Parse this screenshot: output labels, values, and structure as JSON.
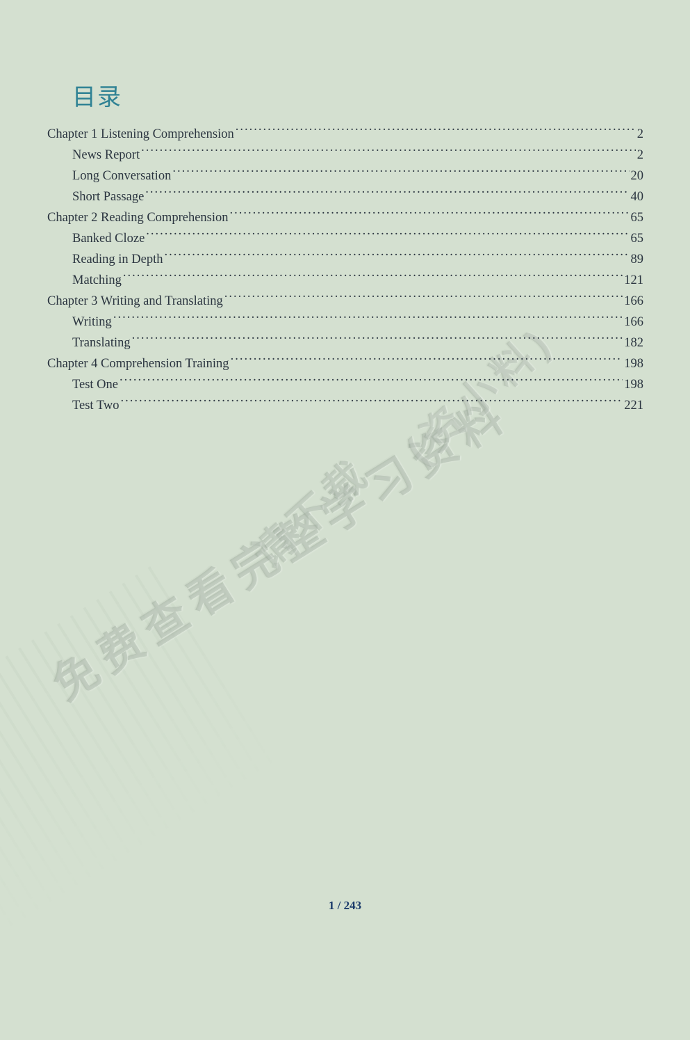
{
  "title": "目录",
  "title_color": "#2f8294",
  "title_fontsize": 34,
  "text_color": "#2b3540",
  "entry_fontsize": 18.5,
  "background_color": "#d4e0d0",
  "entries": [
    {
      "label": "Chapter 1 Listening Comprehension",
      "page": "2",
      "indent": 0
    },
    {
      "label": "News Report",
      "page": "2",
      "indent": 1
    },
    {
      "label": "Long Conversation",
      "page": "20",
      "indent": 1
    },
    {
      "label": "Short Passage",
      "page": "40",
      "indent": 1
    },
    {
      "label": "Chapter 2 Reading Comprehension",
      "page": "65",
      "indent": 0
    },
    {
      "label": "Banked Cloze",
      "page": "65",
      "indent": 1
    },
    {
      "label": "Reading in Depth",
      "page": "89",
      "indent": 1
    },
    {
      "label": "Matching",
      "page": "121",
      "indent": 1
    },
    {
      "label": "Chapter 3 Writing and Translating",
      "page": "166",
      "indent": 0
    },
    {
      "label": "Writing",
      "page": "166",
      "indent": 1
    },
    {
      "label": "Translating",
      "page": "182",
      "indent": 1
    },
    {
      "label": "Chapter 4 Comprehension Training",
      "page": "198",
      "indent": 0
    },
    {
      "label": "Test One",
      "page": "198",
      "indent": 1
    },
    {
      "label": "Test Two",
      "page": "221",
      "indent": 1
    }
  ],
  "footer": "1 / 243",
  "footer_color": "#1a3a6a",
  "watermarks": {
    "wm1_text": "免费查看完整学习资料",
    "wm2_text": "请下载",
    "wm3_text": "(资小料)",
    "color": "rgba(130,150,130,0.30)"
  }
}
